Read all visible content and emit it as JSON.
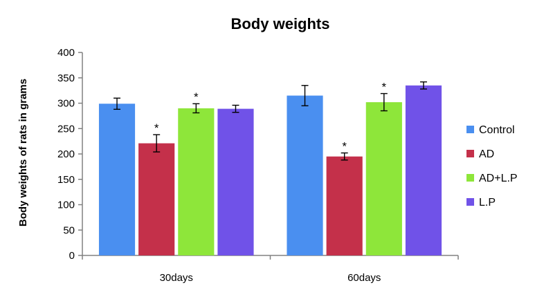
{
  "chart_data": {
    "type": "bar",
    "title": "Body weights",
    "xlabel": "",
    "ylabel": "Body weights of rats in grams",
    "categories": [
      "30days",
      "60days"
    ],
    "ylim": [
      0,
      400
    ],
    "yticks": [
      0,
      50,
      100,
      150,
      200,
      250,
      300,
      350,
      400
    ],
    "grid": false,
    "legend_position": "right",
    "series": [
      {
        "name": "Control",
        "color": "#4a8ff0",
        "values": [
          299,
          315
        ],
        "errors": [
          11,
          20
        ],
        "significant": [
          false,
          false
        ]
      },
      {
        "name": "AD",
        "color": "#c4304a",
        "values": [
          221,
          195
        ],
        "errors": [
          17,
          7
        ],
        "significant": [
          true,
          true
        ]
      },
      {
        "name": "AD+L.P",
        "color": "#8ee63a",
        "values": [
          290,
          302
        ],
        "errors": [
          9,
          17
        ],
        "significant": [
          true,
          true
        ]
      },
      {
        "name": "L.P",
        "color": "#7052e8",
        "values": [
          289,
          335
        ],
        "errors": [
          7,
          7
        ],
        "significant": [
          false,
          false
        ]
      }
    ],
    "significance_marker": "*"
  }
}
